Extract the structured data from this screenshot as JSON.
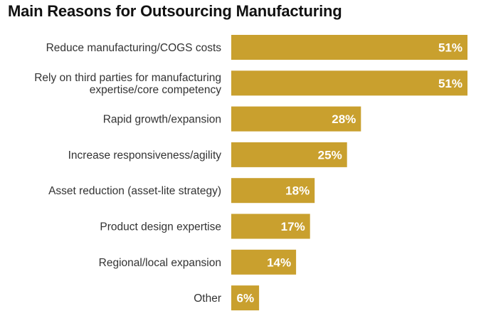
{
  "colors": {
    "bar": "#C9A02E",
    "label_text": "#333333",
    "value_text": "#FFFFFF"
  },
  "chart_data": {
    "type": "bar",
    "orientation": "horizontal",
    "title": "Main Reasons for Outsourcing Manufacturing",
    "categories": [
      "Reduce manufacturing/COGS costs",
      "Rely on third parties for manufacturing expertise/core competency",
      "Rapid growth/expansion",
      "Increase responsiveness/agility",
      "Asset reduction (asset-lite strategy)",
      "Product design expertise",
      "Regional/local expansion",
      "Other"
    ],
    "category_lines": [
      [
        "Reduce manufacturing/COGS costs"
      ],
      [
        "Rely on third parties for manufacturing",
        "expertise/core competency"
      ],
      [
        "Rapid growth/expansion"
      ],
      [
        "Increase responsiveness/agility"
      ],
      [
        "Asset reduction (asset-lite strategy)"
      ],
      [
        "Product design expertise"
      ],
      [
        "Regional/local expansion"
      ],
      [
        "Other"
      ]
    ],
    "values": [
      51,
      51,
      28,
      25,
      18,
      17,
      14,
      6
    ],
    "value_labels": [
      "51%",
      "51%",
      "28%",
      "25%",
      "18%",
      "17%",
      "14%",
      "6%"
    ],
    "xlim": [
      0,
      51
    ],
    "grid": false,
    "legend": "none"
  }
}
